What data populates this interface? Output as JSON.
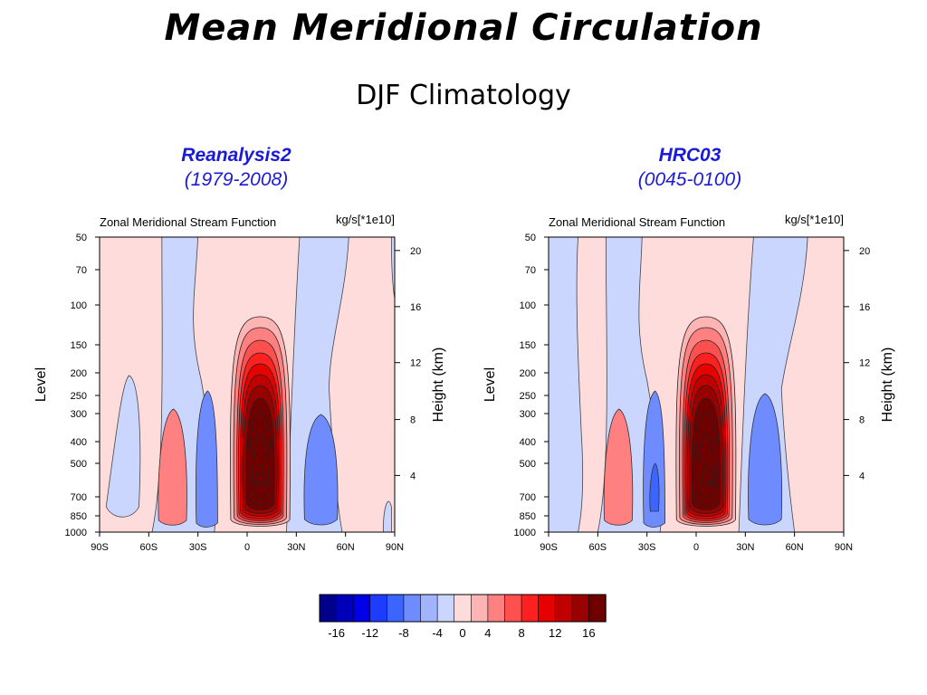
{
  "title": "Mean Meridional Circulation",
  "subtitle": "DJF Climatology",
  "colors": {
    "model_label": "#1a1ad8",
    "scale": [
      "#00008b",
      "#0000b8",
      "#0000e6",
      "#1e3cff",
      "#3c64ff",
      "#6e8cff",
      "#a0b4ff",
      "#cbd6ff",
      "#ffdcdc",
      "#ffb4b4",
      "#ff8080",
      "#ff5050",
      "#ff2020",
      "#e60000",
      "#c00000",
      "#990000",
      "#6e0000"
    ]
  },
  "panels": [
    {
      "model": "Reanalysis2",
      "period": "(1979-2008)",
      "plot_title": "Zonal Meridional Stream Function",
      "units": "kg/s[*1e10]",
      "ylabel": "Level",
      "ylabel_right": "Height (km)",
      "xticks": [
        "90S",
        "60S",
        "30S",
        "0",
        "30N",
        "60N",
        "90N"
      ],
      "yticks": [
        "50",
        "70",
        "100",
        "150",
        "200",
        "250",
        "300",
        "400",
        "500",
        "700",
        "850",
        "1000"
      ],
      "right_ticks": [
        "20",
        "16",
        "12",
        "8",
        "4"
      ]
    },
    {
      "model": "HRC03",
      "period": "(0045-0100)",
      "plot_title": "Zonal Meridional Stream Function",
      "units": "kg/s[*1e10]",
      "ylabel": "Level",
      "ylabel_right": "Height (km)",
      "xticks": [
        "90S",
        "60S",
        "30S",
        "0",
        "30N",
        "60N",
        "90N"
      ],
      "yticks": [
        "50",
        "70",
        "100",
        "150",
        "200",
        "250",
        "300",
        "400",
        "500",
        "700",
        "850",
        "1000"
      ],
      "right_ticks": [
        "20",
        "16",
        "12",
        "8",
        "4"
      ]
    }
  ],
  "colorbar": {
    "labels": [
      "-16",
      "-12",
      "-8",
      "-4",
      "0",
      "4",
      "8",
      "12",
      "16"
    ]
  },
  "chart_data": [
    {
      "type": "heatmap",
      "title": "Zonal Meridional Stream Function",
      "units": "kg/s[*1e10]",
      "xlabel": "",
      "ylabel": "Level",
      "ylabel_right": "Height (km)",
      "xlim": [
        "90S",
        "90N"
      ],
      "ylim": [
        1000,
        50
      ],
      "y_scale": "log",
      "cells": [
        {
          "lat": 8,
          "p": 600,
          "value": 18
        },
        {
          "lat": 8,
          "p": 300,
          "value": 16
        },
        {
          "lat": 8,
          "p": 200,
          "value": 10
        },
        {
          "lat": 8,
          "p": 150,
          "value": 4
        },
        {
          "lat": 8,
          "p": 120,
          "value": 2
        },
        {
          "lat": -45,
          "p": 500,
          "value": 2
        },
        {
          "lat": -65,
          "p": 400,
          "value": -1
        },
        {
          "lat": -24,
          "p": 450,
          "value": -3
        },
        {
          "lat": -30,
          "p": 100,
          "value": -1
        },
        {
          "lat": 42,
          "p": 500,
          "value": -3
        },
        {
          "lat": 55,
          "p": 150,
          "value": -1
        },
        {
          "lat": 75,
          "p": 300,
          "value": 1
        }
      ]
    },
    {
      "type": "heatmap",
      "title": "Zonal Meridional Stream Function",
      "units": "kg/s[*1e10]",
      "xlabel": "",
      "ylabel": "Level",
      "ylabel_right": "Height (km)",
      "xlim": [
        "90S",
        "90N"
      ],
      "ylim": [
        1000,
        50
      ],
      "y_scale": "log",
      "cells": [
        {
          "lat": 6,
          "p": 600,
          "value": 18
        },
        {
          "lat": 6,
          "p": 300,
          "value": 16
        },
        {
          "lat": 6,
          "p": 200,
          "value": 10
        },
        {
          "lat": 6,
          "p": 150,
          "value": 4
        },
        {
          "lat": 6,
          "p": 120,
          "value": 2
        },
        {
          "lat": -47,
          "p": 450,
          "value": 2
        },
        {
          "lat": -78,
          "p": 300,
          "value": -1
        },
        {
          "lat": -25,
          "p": 550,
          "value": -4
        },
        {
          "lat": -32,
          "p": 100,
          "value": -1
        },
        {
          "lat": 38,
          "p": 450,
          "value": -3
        },
        {
          "lat": 58,
          "p": 200,
          "value": -1
        },
        {
          "lat": 85,
          "p": 300,
          "value": 1
        }
      ]
    }
  ]
}
